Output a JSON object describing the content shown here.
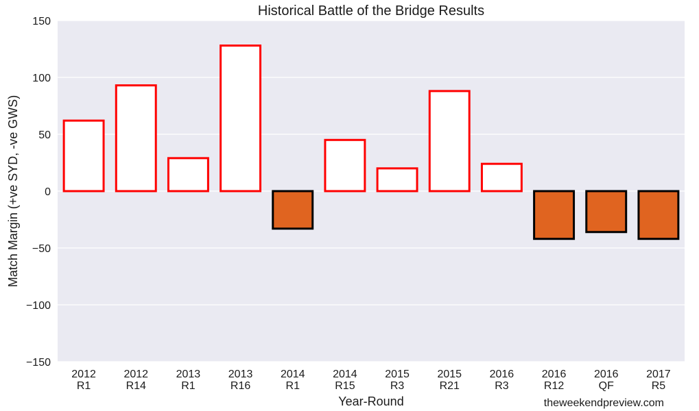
{
  "chart_data": {
    "type": "bar",
    "title": "Historical Battle of the Bridge Results",
    "xlabel": "Year-Round",
    "ylabel": "Match Margin (+ve SYD, -ve GWS)",
    "ylim": [
      -150,
      150
    ],
    "yticks": [
      150,
      100,
      50,
      0,
      -50,
      -100,
      -150
    ],
    "ytick_labels": [
      "150",
      "100",
      "50",
      "0",
      "−50",
      "−100",
      "−150"
    ],
    "grid": true,
    "categories": [
      {
        "year": "2012",
        "round": "R1"
      },
      {
        "year": "2012",
        "round": "R14"
      },
      {
        "year": "2013",
        "round": "R1"
      },
      {
        "year": "2013",
        "round": "R16"
      },
      {
        "year": "2014",
        "round": "R1"
      },
      {
        "year": "2014",
        "round": "R15"
      },
      {
        "year": "2015",
        "round": "R3"
      },
      {
        "year": "2015",
        "round": "R21"
      },
      {
        "year": "2016",
        "round": "R3"
      },
      {
        "year": "2016",
        "round": "R12"
      },
      {
        "year": "2016",
        "round": "QF"
      },
      {
        "year": "2017",
        "round": "R5"
      }
    ],
    "values": [
      62,
      93,
      29,
      128,
      -33,
      45,
      20,
      88,
      24,
      -42,
      -36,
      -42
    ],
    "colors": {
      "positive_fill": "#ffffff",
      "positive_edge": "#ff0000",
      "negative_fill": "#e06420",
      "negative_edge": "#000000",
      "plot_background": "#eaeaf2",
      "grid": "#ffffff"
    }
  },
  "watermark": "theweekendpreview.com"
}
